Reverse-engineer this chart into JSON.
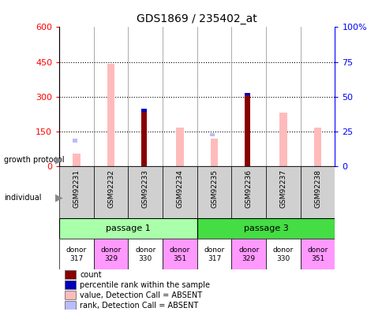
{
  "title": "GDS1869 / 235402_at",
  "samples": [
    "GSM92231",
    "GSM92232",
    "GSM92233",
    "GSM92234",
    "GSM92235",
    "GSM92236",
    "GSM92237",
    "GSM92238"
  ],
  "count": [
    null,
    null,
    240,
    null,
    null,
    310,
    null,
    null
  ],
  "percentile_rank": [
    null,
    null,
    48,
    null,
    null,
    48,
    null,
    null
  ],
  "value_absent": [
    55,
    440,
    null,
    165,
    120,
    null,
    230,
    165
  ],
  "rank_absent_y": [
    110,
    null,
    null,
    null,
    135,
    null,
    null,
    null
  ],
  "ylim_left": [
    0,
    600
  ],
  "ylim_right": [
    0,
    100
  ],
  "yticks_left": [
    0,
    150,
    300,
    450,
    600
  ],
  "yticks_right": [
    0,
    25,
    50,
    75,
    100
  ],
  "indiv_colors": [
    "#ffffff",
    "#ff99ff",
    "#ffffff",
    "#ff99ff",
    "#ffffff",
    "#ff99ff",
    "#ffffff",
    "#ff99ff"
  ],
  "passage1_color": "#aaffaa",
  "passage3_color": "#44dd44",
  "color_count": "#880000",
  "color_percentile": "#0000bb",
  "color_value_absent": "#ffbbbb",
  "color_rank_absent": "#bbbbff",
  "legend_items": [
    {
      "label": "count",
      "color": "#880000"
    },
    {
      "label": "percentile rank within the sample",
      "color": "#0000bb"
    },
    {
      "label": "value, Detection Call = ABSENT",
      "color": "#ffbbbb"
    },
    {
      "label": "rank, Detection Call = ABSENT",
      "color": "#bbbbff"
    }
  ]
}
